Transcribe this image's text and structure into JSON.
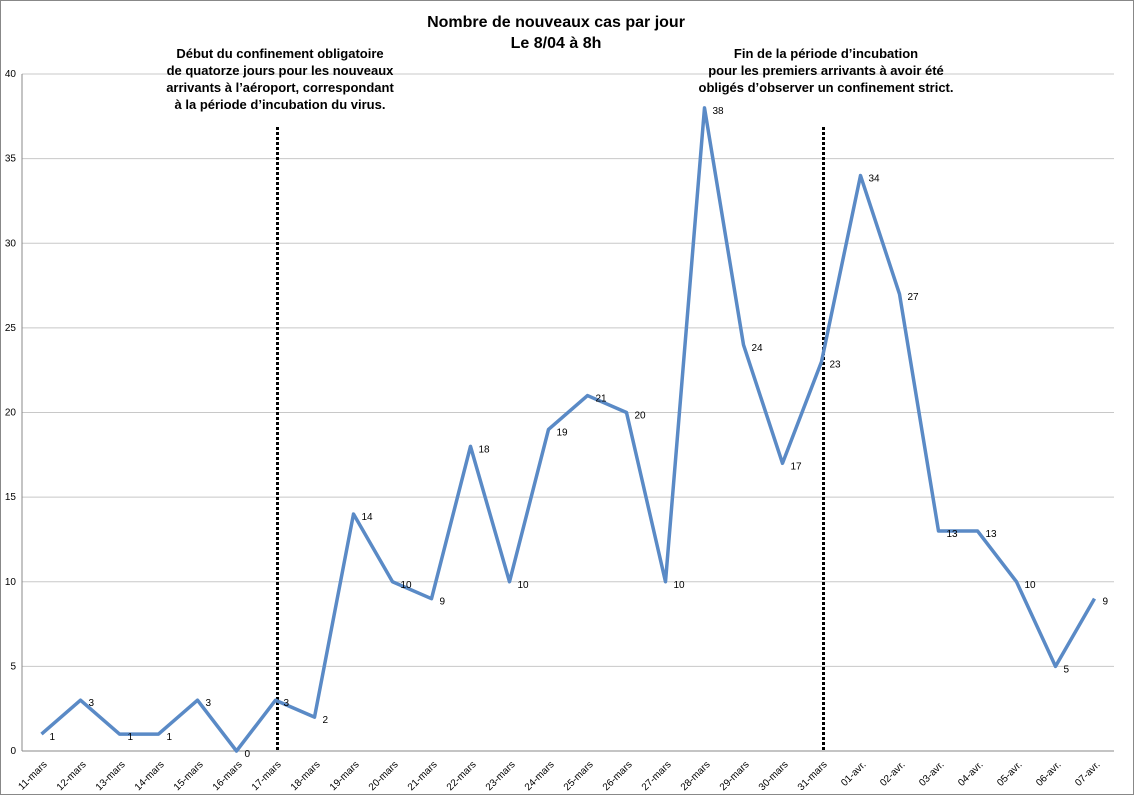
{
  "chart_data": {
    "type": "line",
    "title": [
      "Nombre de nouveaux cas par jour",
      "Le 8/04 à 8h"
    ],
    "annotations": [
      [
        "Début du confinement obligatoire",
        "de quatorze jours pour les nouveaux",
        "arrivants à l’aéroport, correspondant",
        "à la période d’incubation du virus."
      ],
      [
        "Fin de la période d’incubation",
        "pour les premiers arrivants à avoir été",
        "obligés d’observer un confinement strict."
      ]
    ],
    "categories": [
      "11-mars",
      "12-mars",
      "13-mars",
      "14-mars",
      "15-mars",
      "16-mars",
      "17-mars",
      "18-mars",
      "19-mars",
      "20-mars",
      "21-mars",
      "22-mars",
      "23-mars",
      "24-mars",
      "25-mars",
      "26-mars",
      "27-mars",
      "28-mars",
      "29-mars",
      "30-mars",
      "31-mars",
      "01-avr.",
      "02-avr.",
      "03-avr.",
      "04-avr.",
      "05-avr.",
      "06-avr.",
      "07-avr."
    ],
    "values": [
      1,
      3,
      1,
      1,
      3,
      0,
      3,
      2,
      14,
      10,
      9,
      18,
      10,
      19,
      21,
      20,
      10,
      38,
      24,
      17,
      23,
      34,
      27,
      13,
      13,
      10,
      5,
      9
    ],
    "color": "#5a8ac6",
    "ylim": [
      0,
      40
    ],
    "yticks": [
      0,
      5,
      10,
      15,
      20,
      25,
      30,
      35,
      40
    ],
    "grid": true
  }
}
